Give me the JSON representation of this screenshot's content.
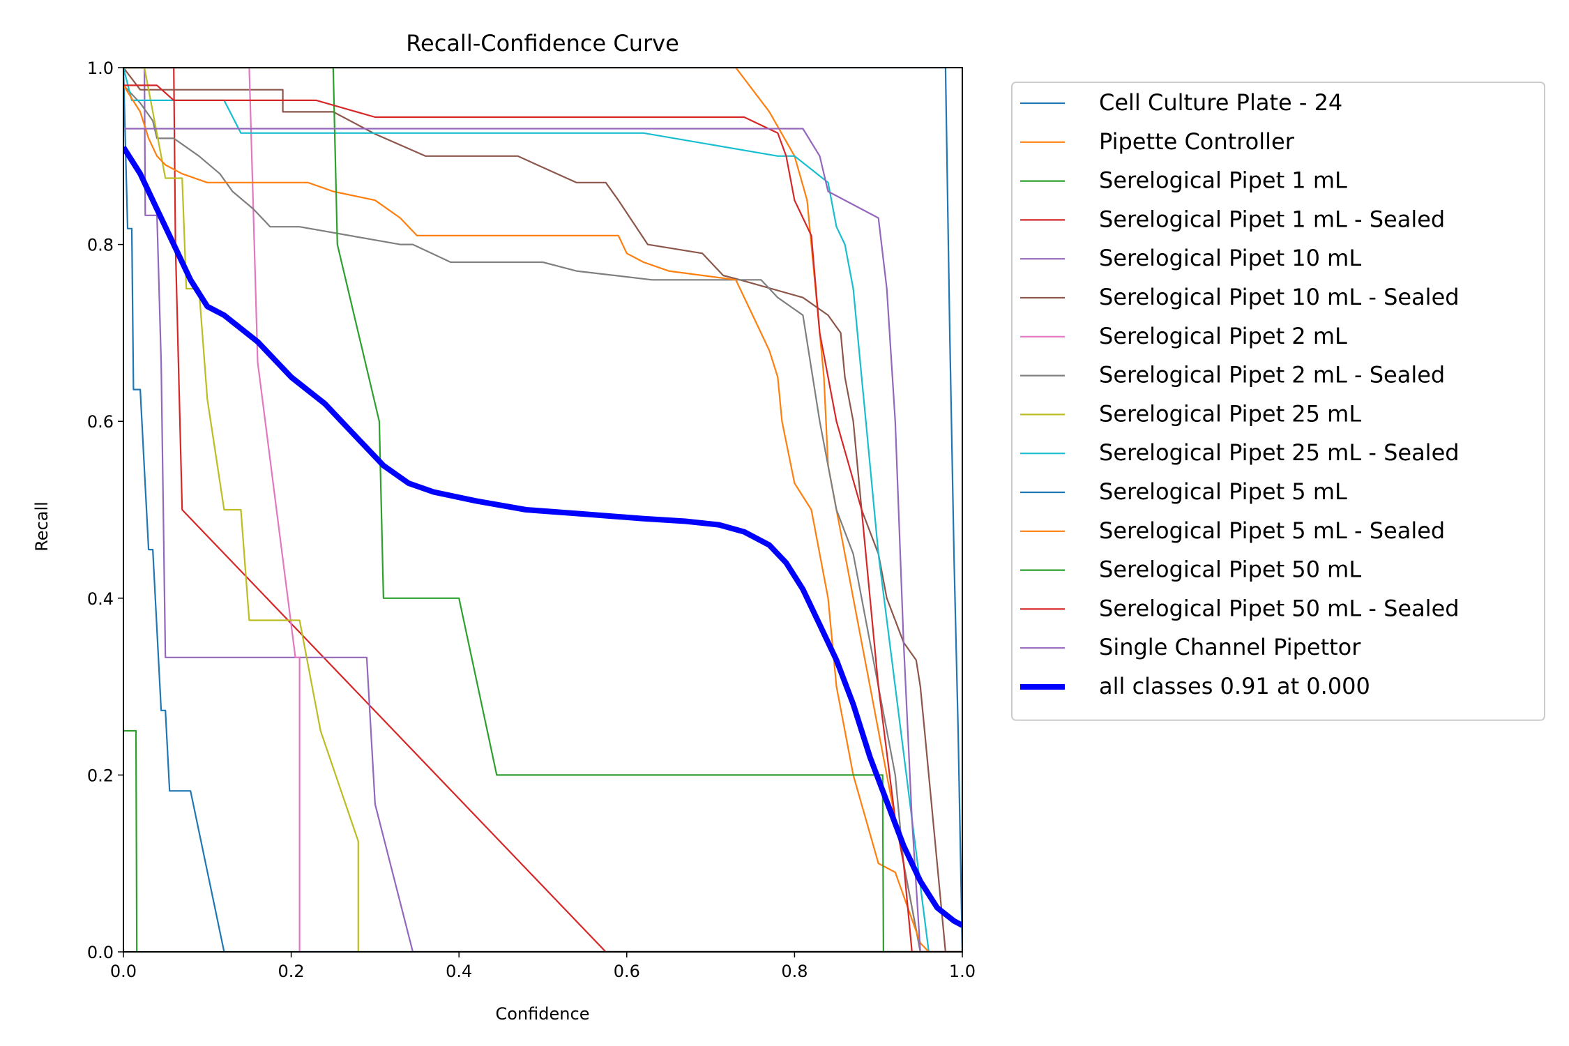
{
  "chart_data": {
    "type": "line",
    "title": "Recall-Confidence Curve",
    "xlabel": "Confidence",
    "ylabel": "Recall",
    "xlim": [
      0,
      1
    ],
    "ylim": [
      0,
      1
    ],
    "xticks": [
      "0.0",
      "0.2",
      "0.4",
      "0.6",
      "0.8",
      "1.0"
    ],
    "yticks": [
      "0.0",
      "0.2",
      "0.4",
      "0.6",
      "0.8",
      "1.0"
    ],
    "grid": false,
    "legend_position": "outside-right",
    "series": [
      {
        "name": "Cell Culture Plate - 24",
        "color": "#1f77b4",
        "x": [
          0.0,
          0.98,
          0.985,
          0.99,
          0.995,
          1.0
        ],
        "y": [
          1.0,
          1.0,
          0.7,
          0.45,
          0.25,
          0.0
        ]
      },
      {
        "name": "Pipette Controller",
        "color": "#ff7f0e",
        "x": [
          0.0,
          0.73,
          0.77,
          0.8,
          0.815,
          0.825,
          0.835,
          0.84,
          0.85,
          0.86,
          0.87,
          0.88,
          0.89,
          0.9,
          0.91,
          0.92,
          0.93,
          0.94,
          0.95,
          1.0
        ],
        "y": [
          1.0,
          1.0,
          0.95,
          0.9,
          0.85,
          0.75,
          0.65,
          0.55,
          0.5,
          0.45,
          0.4,
          0.35,
          0.3,
          0.25,
          0.2,
          0.15,
          0.1,
          0.05,
          0.0,
          0.0
        ]
      },
      {
        "name": "Serelogical Pipet 1 mL",
        "color": "#2ca02c",
        "x": [
          0.0,
          0.01,
          0.015,
          0.016,
          1.0
        ],
        "y": [
          0.25,
          0.25,
          0.25,
          0.0,
          0.0
        ]
      },
      {
        "name": "Serelogical Pipet 1 mL - Sealed",
        "color": "#d62728",
        "x": [
          0.0,
          0.045,
          0.06,
          0.062,
          0.07,
          0.575,
          0.6,
          1.0
        ],
        "y": [
          1.0,
          1.0,
          1.0,
          0.8,
          0.5,
          0.0,
          0.0,
          0.0
        ]
      },
      {
        "name": "Serelogical Pipet 10 mL",
        "color": "#9467bd",
        "x": [
          0.0,
          0.025,
          0.026,
          0.04,
          0.045,
          0.05,
          0.29,
          0.3,
          0.345,
          0.35,
          1.0
        ],
        "y": [
          1.0,
          1.0,
          0.833,
          0.833,
          0.667,
          0.333,
          0.333,
          0.167,
          0.0,
          0.0,
          0.0
        ]
      },
      {
        "name": "Serelogical Pipet 10 mL - Sealed",
        "color": "#8c564b",
        "x": [
          0.0,
          0.02,
          0.03,
          0.06,
          0.07,
          0.15,
          0.19,
          0.19,
          0.2,
          0.25,
          0.3,
          0.36,
          0.47,
          0.54,
          0.575,
          0.59,
          0.625,
          0.69,
          0.715,
          0.735,
          0.81,
          0.84,
          0.855,
          0.86,
          0.87,
          0.875,
          0.88,
          0.9,
          0.91,
          0.93,
          0.945,
          0.95,
          0.955,
          0.96,
          0.965,
          0.97,
          0.975,
          0.98,
          1.0
        ],
        "y": [
          1.0,
          0.975,
          0.975,
          0.975,
          0.975,
          0.975,
          0.975,
          0.95,
          0.95,
          0.95,
          0.925,
          0.9,
          0.9,
          0.87,
          0.87,
          0.85,
          0.8,
          0.79,
          0.765,
          0.76,
          0.74,
          0.72,
          0.7,
          0.65,
          0.6,
          0.55,
          0.5,
          0.45,
          0.4,
          0.35,
          0.33,
          0.3,
          0.25,
          0.2,
          0.15,
          0.1,
          0.05,
          0.0,
          0.0
        ]
      },
      {
        "name": "Serelogical Pipet 2 mL",
        "color": "#e377c2",
        "x": [
          0.0,
          0.15,
          0.155,
          0.16,
          0.205,
          0.21,
          0.21,
          1.0
        ],
        "y": [
          1.0,
          1.0,
          0.833,
          0.667,
          0.333,
          0.333,
          0.0,
          0.0
        ]
      },
      {
        "name": "Serelogical Pipet 2 mL - Sealed",
        "color": "#7f7f7f",
        "x": [
          0.0,
          0.02,
          0.035,
          0.04,
          0.06,
          0.09,
          0.115,
          0.13,
          0.155,
          0.175,
          0.21,
          0.33,
          0.345,
          0.39,
          0.43,
          0.5,
          0.54,
          0.63,
          0.76,
          0.78,
          0.81,
          0.83,
          0.84,
          0.85,
          0.87,
          0.88,
          0.9,
          0.92,
          0.93,
          0.94,
          0.95,
          1.0
        ],
        "y": [
          0.98,
          0.96,
          0.94,
          0.92,
          0.92,
          0.9,
          0.88,
          0.86,
          0.84,
          0.82,
          0.82,
          0.8,
          0.8,
          0.78,
          0.78,
          0.78,
          0.77,
          0.76,
          0.76,
          0.74,
          0.72,
          0.6,
          0.55,
          0.5,
          0.45,
          0.4,
          0.3,
          0.2,
          0.1,
          0.05,
          0.0,
          0.0
        ]
      },
      {
        "name": "Serelogical Pipet 25 mL",
        "color": "#bcbd22",
        "x": [
          0.0,
          0.025,
          0.05,
          0.06,
          0.07,
          0.075,
          0.09,
          0.1,
          0.12,
          0.14,
          0.15,
          0.2,
          0.21,
          0.235,
          0.28,
          0.28,
          1.0
        ],
        "y": [
          1.0,
          1.0,
          0.875,
          0.875,
          0.875,
          0.75,
          0.75,
          0.625,
          0.5,
          0.5,
          0.375,
          0.375,
          0.375,
          0.25,
          0.125,
          0.0,
          0.0
        ]
      },
      {
        "name": "Serelogical Pipet 25 mL - Sealed",
        "color": "#17becf",
        "x": [
          0.0,
          0.01,
          0.12,
          0.14,
          0.62,
          0.78,
          0.8,
          0.84,
          0.85,
          0.86,
          0.87,
          0.875,
          0.88,
          0.885,
          0.89,
          0.9,
          0.92,
          0.94,
          0.96,
          1.0
        ],
        "y": [
          1.0,
          0.963,
          0.963,
          0.926,
          0.926,
          0.9,
          0.9,
          0.87,
          0.82,
          0.8,
          0.75,
          0.7,
          0.65,
          0.6,
          0.55,
          0.45,
          0.3,
          0.15,
          0.0,
          0.0
        ]
      },
      {
        "name": "Serelogical Pipet 5 mL",
        "color": "#1f77b4",
        "x": [
          0.0,
          0.005,
          0.01,
          0.012,
          0.02,
          0.025,
          0.03,
          0.035,
          0.045,
          0.05,
          0.055,
          0.08,
          0.12,
          0.125,
          1.0
        ],
        "y": [
          1.0,
          0.818,
          0.818,
          0.636,
          0.636,
          0.545,
          0.455,
          0.455,
          0.273,
          0.273,
          0.182,
          0.182,
          0.0,
          0.0,
          0.0
        ]
      },
      {
        "name": "Serelogical Pipet 5 mL - Sealed",
        "color": "#ff7f0e",
        "x": [
          0.0,
          0.02,
          0.03,
          0.04,
          0.05,
          0.07,
          0.1,
          0.22,
          0.25,
          0.3,
          0.33,
          0.35,
          0.59,
          0.6,
          0.62,
          0.65,
          0.73,
          0.75,
          0.77,
          0.78,
          0.785,
          0.8,
          0.82,
          0.83,
          0.84,
          0.85,
          0.86,
          0.87,
          0.9,
          0.92,
          0.95,
          0.96,
          1.0
        ],
        "y": [
          0.98,
          0.95,
          0.92,
          0.9,
          0.89,
          0.88,
          0.87,
          0.87,
          0.86,
          0.85,
          0.83,
          0.81,
          0.81,
          0.79,
          0.78,
          0.77,
          0.76,
          0.72,
          0.68,
          0.65,
          0.6,
          0.53,
          0.5,
          0.45,
          0.4,
          0.3,
          0.25,
          0.2,
          0.1,
          0.09,
          0.01,
          0.0,
          0.0
        ]
      },
      {
        "name": "Serelogical Pipet 50 mL",
        "color": "#2ca02c",
        "x": [
          0.0,
          0.25,
          0.255,
          0.305,
          0.31,
          0.4,
          0.445,
          0.9,
          0.905,
          0.906,
          1.0
        ],
        "y": [
          1.0,
          1.0,
          0.8,
          0.6,
          0.4,
          0.4,
          0.2,
          0.2,
          0.2,
          0.0,
          0.0
        ]
      },
      {
        "name": "Serelogical Pipet 50 mL - Sealed",
        "color": "#d62728",
        "x": [
          0.0,
          0.04,
          0.06,
          0.23,
          0.3,
          0.44,
          0.74,
          0.78,
          0.79,
          0.8,
          0.82,
          0.83,
          0.85,
          0.88,
          0.9,
          0.92,
          0.93,
          0.94,
          1.0
        ],
        "y": [
          0.98,
          0.98,
          0.963,
          0.963,
          0.944,
          0.944,
          0.944,
          0.926,
          0.9,
          0.85,
          0.81,
          0.7,
          0.6,
          0.5,
          0.3,
          0.15,
          0.1,
          0.0,
          0.0
        ]
      },
      {
        "name": "Single Channel Pipettor",
        "color": "#9467bd",
        "x": [
          0.0,
          0.02,
          0.81,
          0.83,
          0.84,
          0.9,
          0.91,
          0.92,
          0.93,
          0.94,
          0.95,
          1.0
        ],
        "y": [
          0.931,
          0.931,
          0.931,
          0.9,
          0.86,
          0.83,
          0.75,
          0.6,
          0.35,
          0.15,
          0.0,
          0.0
        ]
      },
      {
        "name": "all classes 0.91 at 0.000",
        "color": "#0000ff",
        "bold": true,
        "x": [
          0.0,
          0.02,
          0.04,
          0.06,
          0.08,
          0.1,
          0.12,
          0.16,
          0.2,
          0.24,
          0.28,
          0.31,
          0.34,
          0.37,
          0.42,
          0.48,
          0.55,
          0.62,
          0.67,
          0.71,
          0.74,
          0.77,
          0.79,
          0.81,
          0.83,
          0.85,
          0.87,
          0.89,
          0.91,
          0.93,
          0.95,
          0.97,
          0.99,
          1.0
        ],
        "y": [
          0.91,
          0.88,
          0.84,
          0.8,
          0.76,
          0.73,
          0.72,
          0.69,
          0.65,
          0.62,
          0.58,
          0.55,
          0.53,
          0.52,
          0.51,
          0.5,
          0.495,
          0.49,
          0.487,
          0.483,
          0.475,
          0.46,
          0.44,
          0.41,
          0.37,
          0.33,
          0.28,
          0.22,
          0.17,
          0.12,
          0.08,
          0.05,
          0.035,
          0.03
        ]
      }
    ]
  }
}
